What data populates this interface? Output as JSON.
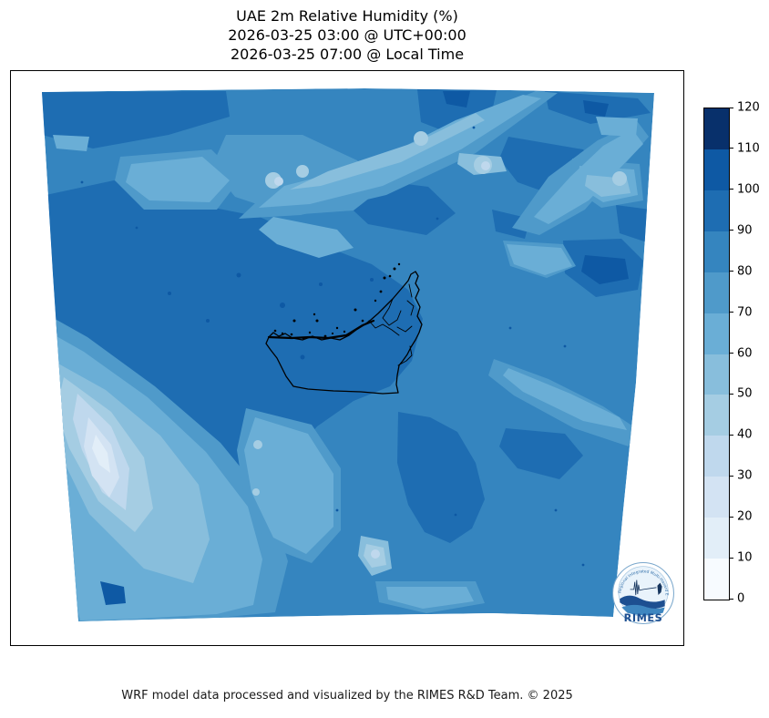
{
  "title": {
    "line1": "UAE 2m Relative Humidity (%)",
    "line2": "2026-03-25 03:00 @ UTC+00:00",
    "line3": "2026-03-25 07:00 @ Local Time"
  },
  "footer": {
    "credit": "WRF model data processed and visualized by the RIMES R&D Team. © 2025"
  },
  "logo": {
    "name": "RIMES",
    "ring_text": "Regional Integrated Multi-Hazard Early Warning System"
  },
  "colorbar": {
    "min": 0,
    "max": 120,
    "interval": 10,
    "ticks": [
      0,
      10,
      20,
      30,
      40,
      50,
      60,
      70,
      80,
      90,
      100,
      110,
      120
    ],
    "bands": [
      {
        "range": "0-10",
        "color": "#F7FBFF"
      },
      {
        "range": "10-20",
        "color": "#E2EEF8"
      },
      {
        "range": "20-30",
        "color": "#D3E3F3"
      },
      {
        "range": "30-40",
        "color": "#BFD8ED"
      },
      {
        "range": "40-50",
        "color": "#A5CDE3"
      },
      {
        "range": "50-60",
        "color": "#88BEDC"
      },
      {
        "range": "60-70",
        "color": "#6AAED6"
      },
      {
        "range": "70-80",
        "color": "#4F9ACA"
      },
      {
        "range": "80-90",
        "color": "#3585BF"
      },
      {
        "range": "90-100",
        "color": "#1E6DB2"
      },
      {
        "range": "100-110",
        "color": "#0E59A4"
      },
      {
        "range": "110-120",
        "color": "#08306B"
      }
    ]
  },
  "chart_data": {
    "type": "heatmap",
    "subtype": "filled-contour-map",
    "title": "UAE 2m Relative Humidity (%)",
    "variable": "2m Relative Humidity",
    "units": "%",
    "valid_time_utc": "2026-03-25 03:00 @ UTC+00:00",
    "valid_time_local": "2026-03-25 07:00 @ Local Time",
    "colorscale": "Blues",
    "value_range": [
      0,
      120
    ],
    "contour_interval": 10,
    "overlay": "UAE administrative boundary with coastal islands",
    "regions_estimated": [
      {
        "area": "central and northwest interior (large dark mass)",
        "rh_percent": "90-100"
      },
      {
        "area": "southwest corner diagonal band (desert)",
        "rh_percent": "20-60"
      },
      {
        "area": "top of domain / northern Gulf, mottled",
        "rh_percent": "60-100"
      },
      {
        "area": "east and southeast of UAE",
        "rh_percent": "80-90"
      },
      {
        "area": "local maxima spots (right-center, top-center, bottom-left)",
        "rh_percent": "100-110"
      },
      {
        "area": "patch below UAE border",
        "rh_percent": "90-100"
      }
    ]
  }
}
